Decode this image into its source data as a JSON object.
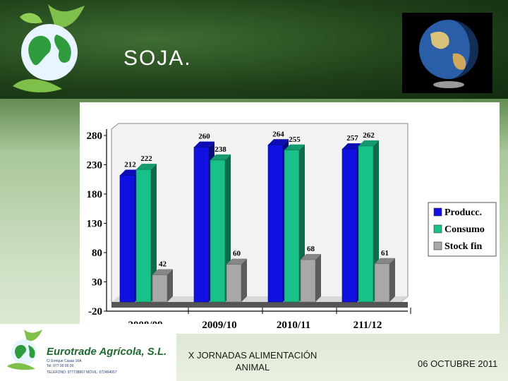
{
  "slide": {
    "title": "SOJA.",
    "footer_center_line1": "X JORNADAS ALIMENTACIÓN",
    "footer_center_line2": "ANIMAL",
    "footer_date": "06 OCTUBRE 2011"
  },
  "footer_logo": {
    "brand": "Eurotrade Agrícola, S.L.",
    "address1": "C/ Enrique Casas 16A",
    "address2": "Tel: 977 00 00 00",
    "address3": "TELÉFONO: 977738867   MÓVIL: 672464057"
  },
  "colors": {
    "producc": "#1010e0",
    "consumo": "#18c08a",
    "stock": "#a8a8a8"
  },
  "chart_data": {
    "type": "bar",
    "categories": [
      "2008/09",
      "2009/10",
      "2010/11",
      "211/12"
    ],
    "series": [
      {
        "name": "Producc.",
        "values": [
          212,
          260,
          264,
          257
        ]
      },
      {
        "name": "Consumo",
        "values": [
          222,
          238,
          255,
          262
        ]
      },
      {
        "name": "Stock fin",
        "values": [
          42,
          60,
          68,
          61
        ]
      }
    ],
    "ylim": [
      -20,
      280
    ],
    "yticks": [
      "-20",
      "30",
      "80",
      "130",
      "180",
      "230",
      "280"
    ],
    "legend_position": "right",
    "grid": false
  }
}
